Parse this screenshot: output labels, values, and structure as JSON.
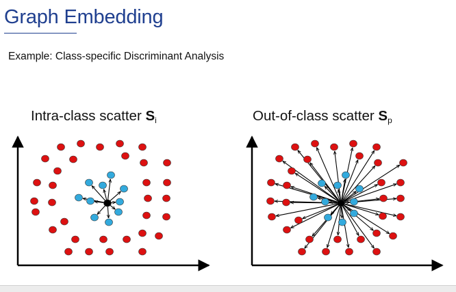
{
  "slide": {
    "title": "Graph Embedding",
    "subtitle": "Example: Class-specific Discriminant Analysis"
  },
  "panels": [
    {
      "title_text": "Intra-class scatter ",
      "title_symbol": "S",
      "title_subscript": "i",
      "connections": "center-to-blue"
    },
    {
      "title_text": "Out-of-class scatter ",
      "title_symbol": "S",
      "title_subscript": "p",
      "connections": "center-to-all"
    }
  ],
  "colors": {
    "title": "#1f3f8f",
    "class_point": "#33aadd",
    "other_point": "#dd1111",
    "center_point": "#000000"
  }
}
